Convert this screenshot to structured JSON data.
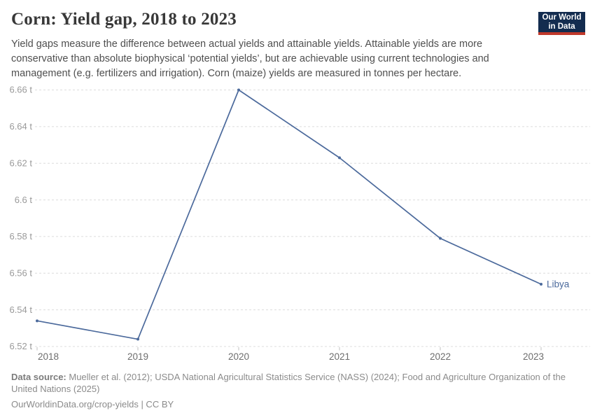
{
  "header": {
    "title": "Corn: Yield gap, 2018 to 2023",
    "subtitle_lines": [
      "Yield gaps measure the difference between actual yields and attainable yields. Attainable yields are more",
      "conservative than absolute biophysical ‘potential yields’, but are achievable using current technologies and",
      "management (e.g. fertilizers and irrigation). Corn (maize) yields are measured in tonnes per hectare."
    ],
    "logo": {
      "line1": "Our World",
      "line2": "in Data"
    }
  },
  "chart_data": {
    "type": "line",
    "title": "Corn: Yield gap, 2018 to 2023",
    "ylabel": "",
    "xlabel": "",
    "unit": "tonnes per hectare",
    "x": [
      2018,
      2019,
      2020,
      2021,
      2022,
      2023
    ],
    "xtick_labels": [
      "2018",
      "2019",
      "2020",
      "2021",
      "2022",
      "2023"
    ],
    "series": [
      {
        "name": "Libya",
        "values": [
          6.534,
          6.524,
          6.66,
          6.623,
          6.579,
          6.554
        ],
        "color": "#4c6a9c"
      }
    ],
    "end_label": "Libya",
    "ylim": [
      6.52,
      6.66
    ],
    "yticks": [
      {
        "value": 6.52,
        "label": "6.52 t"
      },
      {
        "value": 6.54,
        "label": "6.54 t"
      },
      {
        "value": 6.56,
        "label": "6.56 t"
      },
      {
        "value": 6.58,
        "label": "6.58 t"
      },
      {
        "value": 6.6,
        "label": "6.6 t"
      },
      {
        "value": 6.62,
        "label": "6.62 t"
      },
      {
        "value": 6.64,
        "label": "6.64 t"
      },
      {
        "value": 6.66,
        "label": "6.66 t"
      }
    ],
    "grid": "horizontal-dashed",
    "legend_position": "end-of-line"
  },
  "footer": {
    "source_label": "Data source:",
    "source_lines": [
      "Mueller et al. (2012); USDA National Agricultural Statistics Service (NASS) (2024); Food and Agriculture Organization of the",
      "United Nations (2025)"
    ],
    "license": "OurWorldinData.org/crop-yields | CC BY"
  },
  "colors": {
    "accent": "#4c6a9c",
    "logo_navy": "#132c4f",
    "logo_red": "#c0392b",
    "grid": "#dcdcdc",
    "y_tick_text": "#9a9a9a",
    "x_tick_text": "#6e6e6e"
  }
}
